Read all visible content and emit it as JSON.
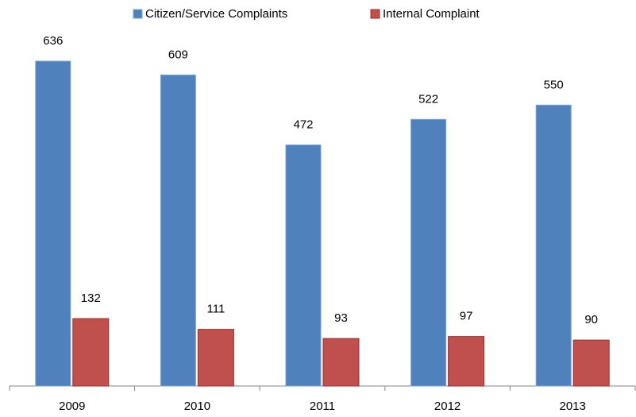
{
  "chart_data": {
    "type": "bar",
    "categories": [
      "2009",
      "2010",
      "2011",
      "2012",
      "2013"
    ],
    "series": [
      {
        "name": "Citizen/Service Complaints",
        "color": "#4f81bd",
        "values": [
          636,
          609,
          472,
          522,
          550
        ]
      },
      {
        "name": "Internal Complaint",
        "color": "#c0504d",
        "values": [
          132,
          111,
          93,
          97,
          90
        ]
      }
    ],
    "legend": "top"
  }
}
